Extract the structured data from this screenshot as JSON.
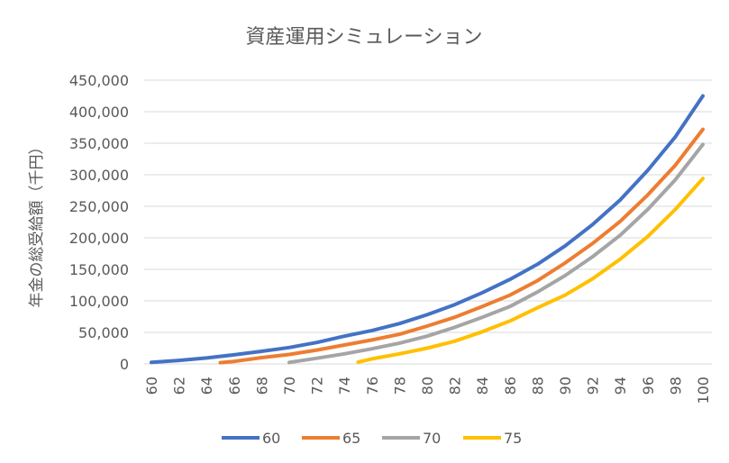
{
  "chart_data": {
    "type": "line",
    "title": "資産運用シミュレーション",
    "xlabel": "",
    "ylabel": "年金の総受給額（千円）",
    "xlim": [
      60,
      100
    ],
    "ylim": [
      0,
      450000
    ],
    "xticks": [
      "60",
      "62",
      "64",
      "66",
      "68",
      "70",
      "72",
      "74",
      "76",
      "78",
      "80",
      "82",
      "84",
      "86",
      "88",
      "90",
      "92",
      "94",
      "96",
      "98",
      "100"
    ],
    "yticks": [
      "0",
      "50,000",
      "100,000",
      "150,000",
      "200,000",
      "250,000",
      "300,000",
      "350,000",
      "400,000",
      "450,000"
    ],
    "grid": "horizontal",
    "legend_position": "bottom",
    "series": [
      {
        "name": "60",
        "color": "#4472C4",
        "x": [
          60,
          62,
          64,
          66,
          68,
          70,
          72,
          74,
          76,
          78,
          80,
          82,
          84,
          86,
          88,
          90,
          92,
          94,
          96,
          98,
          100
        ],
        "y": [
          2500,
          5500,
          9500,
          14500,
          20000,
          26000,
          34000,
          44000,
          53000,
          64000,
          78000,
          94000,
          113000,
          134000,
          158000,
          187000,
          221000,
          260000,
          307000,
          360000,
          425000
        ]
      },
      {
        "name": "65",
        "color": "#ED7D31",
        "x": [
          65,
          66,
          68,
          70,
          72,
          74,
          76,
          78,
          80,
          82,
          84,
          86,
          88,
          90,
          92,
          94,
          96,
          98,
          100
        ],
        "y": [
          2000,
          4000,
          10000,
          15000,
          22000,
          30000,
          38000,
          47000,
          60000,
          74000,
          91000,
          109000,
          132000,
          160000,
          191000,
          226000,
          268000,
          315000,
          372000
        ]
      },
      {
        "name": "70",
        "color": "#A5A5A5",
        "x": [
          70,
          72,
          74,
          76,
          78,
          80,
          82,
          84,
          86,
          88,
          90,
          92,
          94,
          96,
          98,
          100
        ],
        "y": [
          2500,
          9000,
          16000,
          24000,
          33000,
          44000,
          58000,
          74000,
          91000,
          114000,
          140000,
          170000,
          204000,
          245000,
          292000,
          348000
        ]
      },
      {
        "name": "75",
        "color": "#FFC000",
        "x": [
          75,
          76,
          78,
          80,
          82,
          84,
          86,
          88,
          90,
          92,
          94,
          96,
          98,
          100
        ],
        "y": [
          3000,
          8000,
          16000,
          25000,
          36000,
          51000,
          68000,
          89000,
          109000,
          135000,
          166000,
          202000,
          245000,
          294000
        ]
      }
    ]
  }
}
